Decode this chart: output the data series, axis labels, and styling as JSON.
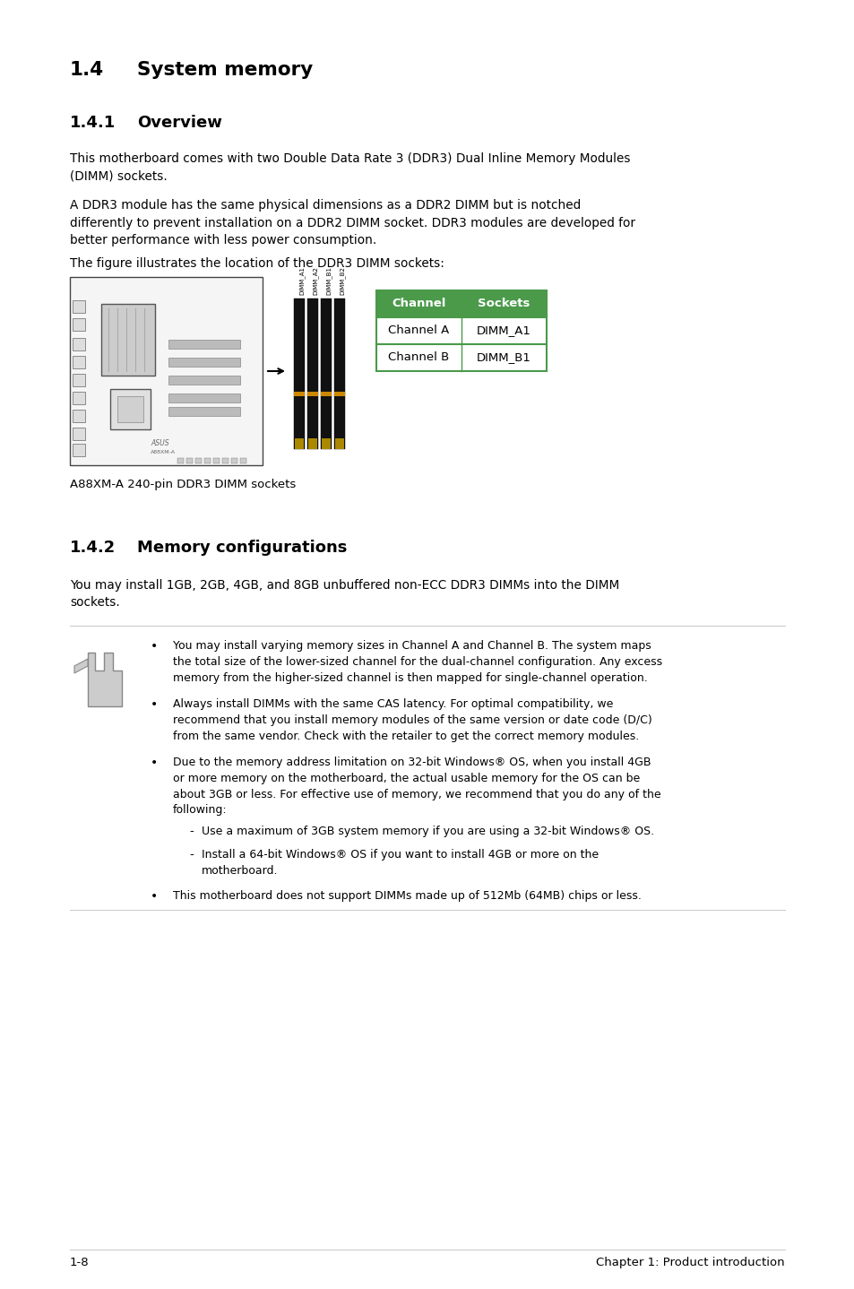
{
  "page_bg": "#ffffff",
  "text_color": "#000000",
  "table_header_bg": "#4a9a4a",
  "table_header_fg": "#ffffff",
  "table_border": "#4a9a4a",
  "table_rows": [
    [
      "Channel A",
      "DIMM_A1"
    ],
    [
      "Channel B",
      "DIMM_B1"
    ]
  ],
  "line_color": "#cccccc",
  "footer_left": "1-8",
  "footer_right": "Chapter 1: Product introduction"
}
